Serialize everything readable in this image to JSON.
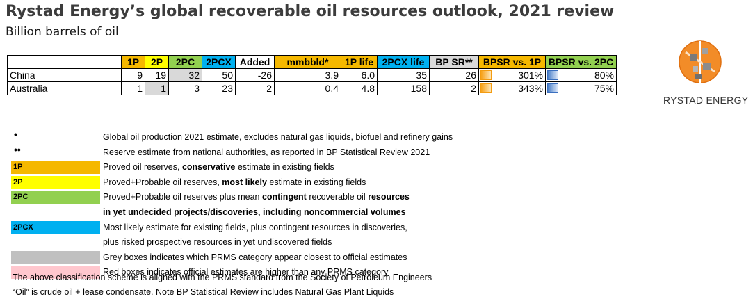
{
  "title": "Rystad Energy’s global recoverable oil resources outlook, 2021 review",
  "subtitle": "Billion barrels of oil",
  "logo_text": "RYSTAD ENERGY",
  "colors": {
    "1P": "#f5b800",
    "2P": "#ffff00",
    "2PC": "#92d050",
    "2PCX": "#00b0f0",
    "mmbbld": "#f5b800",
    "1P_life": "#f5b800",
    "2PCX_life": "#00b0f0",
    "BP_SR": "#d9d9d9",
    "BPSR_vs_1P": "#f5b800",
    "BPSR_vs_2PC": "#92d050",
    "grey_highlight": "#d9d9d9",
    "red_highlight": "#ffc7ce"
  },
  "chart_data": {
    "type": "table",
    "columns": [
      "1P",
      "2P",
      "2PC",
      "2PCX",
      "Added",
      "mmbbld*",
      "1P life",
      "2PCX life",
      "BP SR**",
      "BPSR vs. 1P",
      "BPSR vs. 2PC"
    ],
    "rows": [
      {
        "name": "China",
        "values": [
          "9",
          "19",
          "32",
          "50",
          "-26",
          "3.9",
          "6.0",
          "35",
          "26",
          "301%",
          "80%"
        ],
        "highlight_col": 2
      },
      {
        "name": "Australia",
        "values": [
          "1",
          "1",
          "3",
          "23",
          "2",
          "0.4",
          "4.8",
          "158",
          "2",
          "343%",
          "75%"
        ],
        "highlight_col": 1
      }
    ]
  },
  "legend": [
    {
      "marker": "•",
      "swatch": "",
      "text": "Global oil production 2021 estimate, excludes natural gas liquids, biofuel and refinery gains"
    },
    {
      "marker": "••",
      "swatch": "",
      "text": "Reserve estimate from national authorities, as reported in BP Statistical Review 2021"
    },
    {
      "marker": "",
      "swatch": "1P",
      "color": "#f5b800",
      "text_pre": "Proved oil reserves, ",
      "text_bold": "conservative",
      "text_post": " estimate in existing fields"
    },
    {
      "marker": "",
      "swatch": "2P",
      "color": "#ffff00",
      "text_pre": "Proved+Probable oil reserves, ",
      "text_bold": "most likely",
      "text_post": " estimate in existing fields"
    },
    {
      "marker": "",
      "swatch": "2PC",
      "color": "#92d050",
      "text_pre": "Proved+Probable oil reserves plus mean ",
      "text_bold": "contingent",
      "text_post": " recoverable oil ",
      "text_bold2": "resources"
    },
    {
      "marker": "",
      "swatch": "",
      "bold_line": "in yet undecided projects/discoveries, including noncommercial volumes"
    },
    {
      "marker": "",
      "swatch": "2PCX",
      "color": "#00b0f0",
      "text": "Most likely estimate for existing fields, plus contingent resources in discoveries,"
    },
    {
      "marker": "",
      "swatch": "",
      "text": "plus risked prospective resources in yet undiscovered fields"
    },
    {
      "marker": "",
      "swatch": "",
      "color": "#c0c0c0",
      "text": "Grey boxes indicates which PRMS category appear closest to official estimates"
    },
    {
      "marker": "",
      "swatch": "",
      "color": "#ffc7ce",
      "text": "Red boxes indicates official estimates are higher than any PRMS category"
    }
  ],
  "footer": [
    "The above classification scheme is aligned with the PRMS standard from the Society of Petroleum Engineers",
    "“Oil” is crude oil + lease condensate. Note BP Statistical Review includes Natural Gas Plant Liquids"
  ]
}
